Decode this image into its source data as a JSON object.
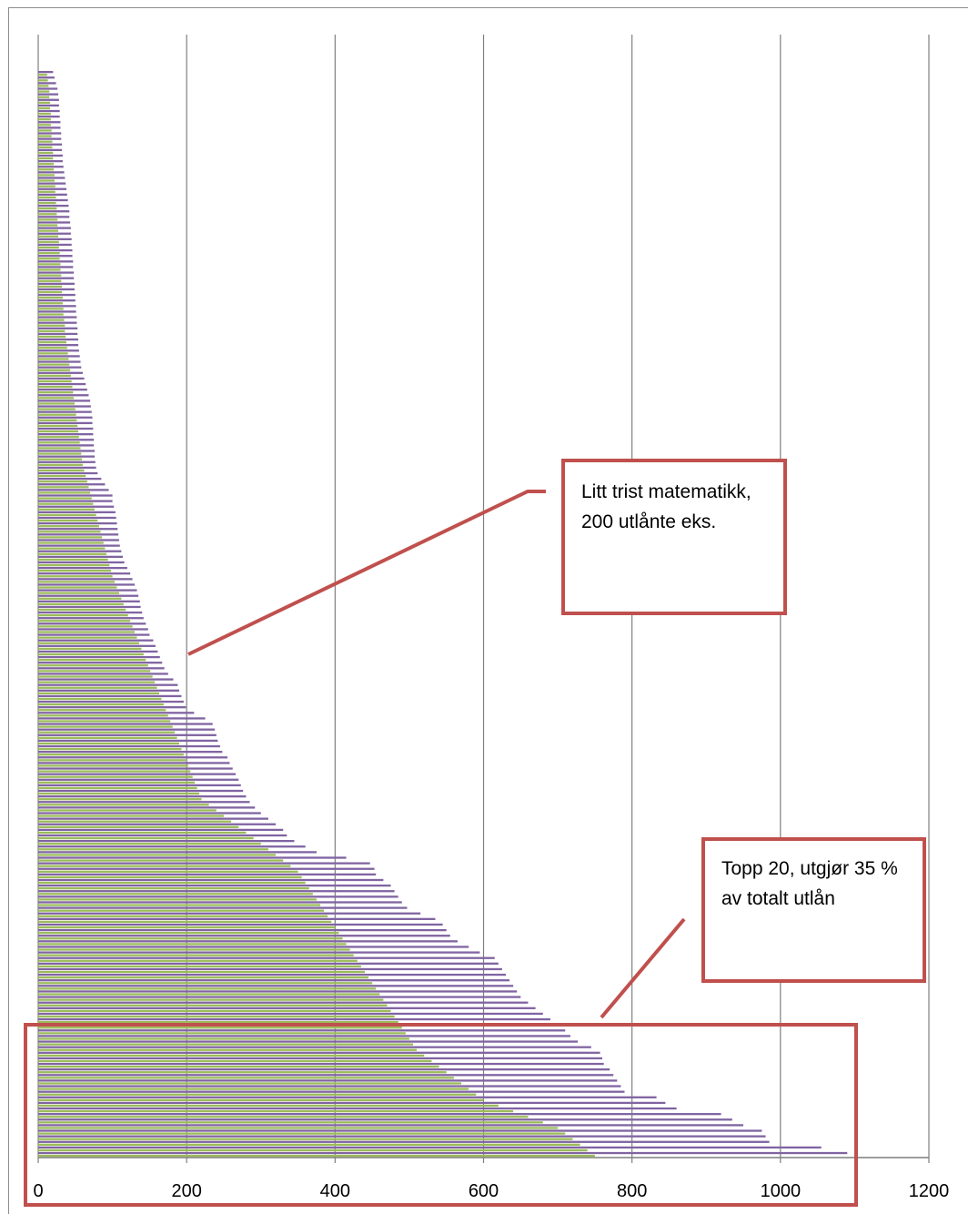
{
  "chart_data": {
    "type": "bar",
    "orientation": "horizontal",
    "xlim": [
      0,
      1200
    ],
    "x_ticks": [
      "0",
      "200",
      "400",
      "600",
      "800",
      "1000",
      "1200"
    ],
    "grid": "vertical",
    "series": [
      {
        "color": "#8064a2",
        "values": [
          20,
          22,
          24,
          26,
          27,
          28,
          28,
          29,
          29,
          30,
          30,
          31,
          31,
          32,
          32,
          33,
          33,
          34,
          35,
          36,
          37,
          38,
          39,
          40,
          41,
          42,
          42,
          43,
          44,
          44,
          45,
          45,
          46,
          46,
          47,
          47,
          48,
          48,
          49,
          49,
          50,
          50,
          51,
          51,
          52,
          52,
          53,
          53,
          54,
          54,
          55,
          56,
          57,
          58,
          60,
          62,
          64,
          66,
          68,
          70,
          71,
          72,
          73,
          73,
          74,
          74,
          75,
          75,
          76,
          76,
          77,
          78,
          80,
          85,
          90,
          95,
          100,
          100,
          102,
          104,
          105,
          106,
          107,
          108,
          109,
          110,
          112,
          114,
          116,
          120,
          124,
          127,
          130,
          133,
          135,
          137,
          138,
          140,
          142,
          145,
          148,
          150,
          155,
          158,
          161,
          164,
          167,
          170,
          175,
          182,
          188,
          190,
          193,
          196,
          199,
          210,
          225,
          235,
          238,
          240,
          242,
          245,
          248,
          255,
          258,
          262,
          266,
          270,
          273,
          276,
          280,
          285,
          292,
          300,
          310,
          320,
          330,
          335,
          345,
          360,
          375,
          415,
          447,
          453,
          455,
          465,
          475,
          480,
          485,
          490,
          497,
          515,
          535,
          545,
          550,
          555,
          565,
          580,
          595,
          615,
          620,
          625,
          630,
          635,
          640,
          645,
          650,
          660,
          670,
          680,
          690,
          700,
          710,
          717,
          727,
          745,
          757,
          760,
          762,
          770,
          775,
          780,
          785,
          790,
          833,
          845,
          860,
          920,
          935,
          950,
          975,
          980,
          985,
          1055,
          1090
        ]
      },
      {
        "color": "#9bbb59",
        "values": [
          12,
          13,
          14,
          15,
          15,
          16,
          16,
          17,
          17,
          17,
          18,
          18,
          19,
          19,
          20,
          20,
          21,
          21,
          22,
          22,
          23,
          23,
          24,
          24,
          25,
          25,
          26,
          26,
          27,
          27,
          28,
          28,
          29,
          29,
          30,
          30,
          31,
          31,
          32,
          32,
          33,
          33,
          34,
          34,
          35,
          36,
          36,
          37,
          38,
          39,
          40,
          41,
          42,
          43,
          44,
          45,
          46,
          47,
          48,
          49,
          50,
          51,
          52,
          53,
          54,
          55,
          56,
          57,
          58,
          59,
          60,
          62,
          64,
          66,
          68,
          70,
          72,
          74,
          76,
          78,
          80,
          82,
          84,
          86,
          88,
          90,
          92,
          94,
          96,
          98,
          100,
          103,
          106,
          109,
          112,
          115,
          118,
          121,
          124,
          127,
          130,
          133,
          136,
          139,
          142,
          145,
          148,
          151,
          154,
          157,
          160,
          163,
          166,
          169,
          172,
          175,
          178,
          181,
          184,
          187,
          190,
          193,
          196,
          199,
          202,
          205,
          208,
          211,
          214,
          217,
          220,
          230,
          240,
          250,
          260,
          270,
          280,
          290,
          300,
          310,
          320,
          330,
          340,
          350,
          355,
          360,
          365,
          370,
          375,
          380,
          385,
          390,
          395,
          400,
          405,
          410,
          415,
          420,
          425,
          430,
          435,
          440,
          445,
          450,
          455,
          460,
          465,
          470,
          475,
          480,
          485,
          490,
          495,
          500,
          505,
          510,
          520,
          530,
          540,
          550,
          560,
          570,
          580,
          590,
          600,
          620,
          640,
          660,
          680,
          700,
          710,
          720,
          730,
          740,
          750
        ]
      }
    ]
  },
  "callouts": {
    "math": "Litt trist matematikk, 200 utlånte eks.",
    "top20": "Topp 20, utgjør 35 % av totalt utlån"
  },
  "colors": {
    "annotation": "#c0504d",
    "grid": "#7f7f7f"
  }
}
